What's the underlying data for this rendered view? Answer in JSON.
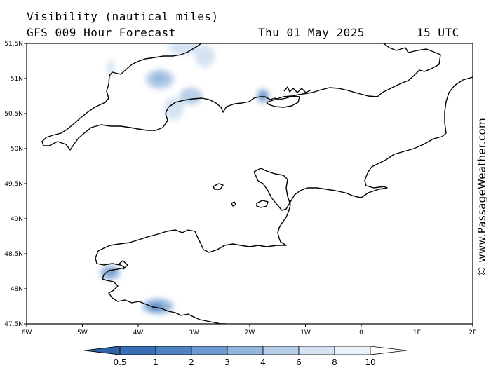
{
  "header": {
    "title": "Visibility (nautical miles)",
    "subtitle": "GFS 009 Hour Forecast",
    "date": "Thu 01 May 2025",
    "time": "15 UTC"
  },
  "map": {
    "lat_labels": [
      "51.5N",
      "51N",
      "50.5N",
      "50N",
      "49.5N",
      "49N",
      "48.5N",
      "48N",
      "47.5N"
    ],
    "lon_labels": [
      "6W",
      "5W",
      "4W",
      "3W",
      "2W",
      "1W",
      "0",
      "1E",
      "2E"
    ],
    "region": "English Channel",
    "colors": {
      "coast": "#000000",
      "background": "#ffffff",
      "low_visibility": "#4a7fc0"
    }
  },
  "legend": {
    "ticks": [
      "0.5",
      "1",
      "2",
      "3",
      "4",
      "6",
      "8",
      "10"
    ],
    "colors": [
      "#3a6fb5",
      "#4f82c2",
      "#6e9acf",
      "#94b6dd",
      "#b6cde8",
      "#d4e2f2",
      "#ebf1f9",
      "#ffffff"
    ]
  },
  "credit": "© www.PassageWeather.com"
}
